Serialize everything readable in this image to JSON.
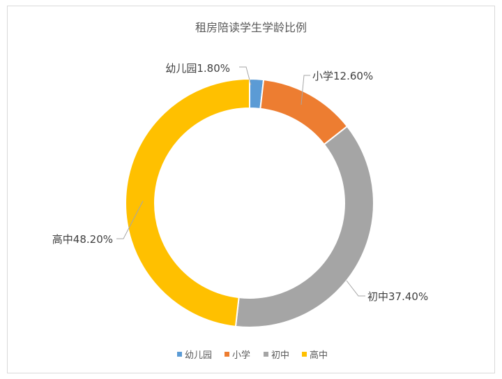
{
  "chart_data": {
    "type": "pie",
    "variant": "doughnut",
    "title": "租房陪读学生学龄比例",
    "categories": [
      "幼儿园",
      "小学",
      "初中",
      "高中"
    ],
    "values": [
      1.8,
      12.6,
      37.4,
      48.2
    ],
    "data_labels": [
      "幼儿园1.80%",
      "小学12.60%",
      "初中37.40%",
      "高中48.20%"
    ],
    "colors": [
      "#5b9bd5",
      "#ed7d31",
      "#a5a5a5",
      "#ffc000"
    ],
    "legend_position": "bottom",
    "legend": [
      "幼儿园",
      "小学",
      "初中",
      "高中"
    ]
  }
}
